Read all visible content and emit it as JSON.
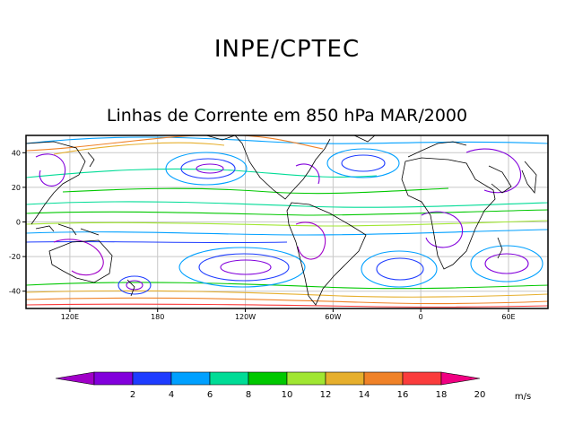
{
  "header": {
    "title": "INPE/CPTEC",
    "subtitle": "Linhas de Corrente em 850 hPa MAR/2000"
  },
  "map": {
    "x_ticks": [
      "120E",
      "180",
      "120W",
      "60W",
      "0",
      "60E"
    ],
    "y_ticks": [
      "40",
      "20",
      "0",
      "-20",
      "-40"
    ],
    "lon_range": [
      90,
      447
    ],
    "lat_range": [
      -50,
      50
    ],
    "x_tick_values": [
      120,
      180,
      240,
      300,
      360,
      420
    ],
    "y_tick_values": [
      40,
      20,
      0,
      -20,
      -40
    ]
  },
  "colorbar": {
    "labels": [
      "2",
      "4",
      "6",
      "8",
      "10",
      "12",
      "14",
      "16",
      "18",
      "20"
    ],
    "unit": "m/s",
    "colors": [
      "#a000c8",
      "#8200dc",
      "#1e3cff",
      "#00a0ff",
      "#00dc96",
      "#00c800",
      "#a0e632",
      "#e6af2d",
      "#f08228",
      "#fa3c3c",
      "#f00082"
    ]
  },
  "colors": {
    "border": "#000000",
    "grid": "#c8c8c8",
    "coast": "#000000"
  }
}
